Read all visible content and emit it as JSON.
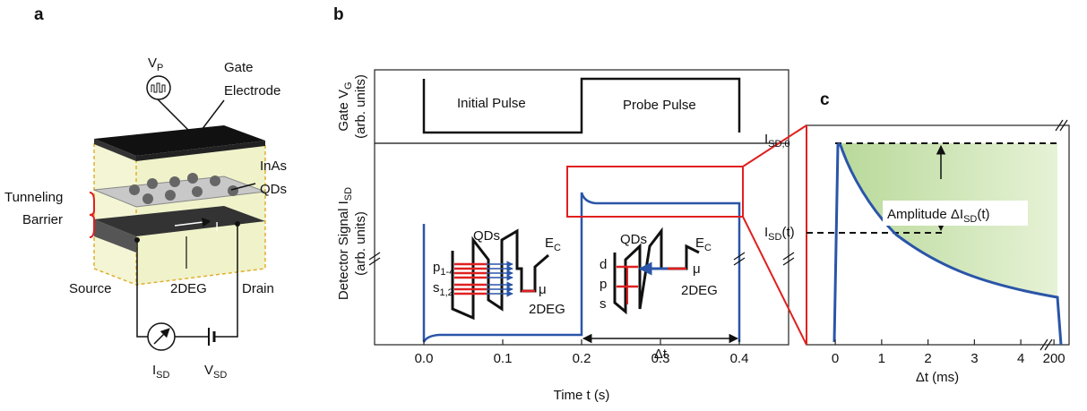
{
  "panels": [
    "a",
    "b",
    "c"
  ],
  "device": {
    "vp": [
      "V",
      "P"
    ],
    "gate": [
      "Gate",
      "Electrode"
    ],
    "qds": [
      "InAs",
      "QDs"
    ],
    "barrier": [
      "Tunneling",
      "Barrier"
    ],
    "current": "I",
    "source": "Source",
    "layer": "2DEG",
    "drain": "Drain",
    "isd": [
      "I",
      "SD"
    ],
    "vsd": [
      "V",
      "SD"
    ]
  },
  "chart_data": [
    {
      "type": "line",
      "gate_ylabel": [
        "Gate V",
        "G",
        "(arb. units)"
      ],
      "detector_ylabel": [
        "Detector Signal I",
        "SD",
        "(arb. units)"
      ],
      "xlabel": "Time t (s)",
      "xlim": [
        -0.0625,
        0.4625
      ],
      "xticks": [
        {
          "value": 0,
          "label": "0.0"
        },
        0.1,
        0.2,
        0.3,
        0.4
      ],
      "annotations": {
        "initial": "Initial Pulse",
        "probe": "Probe Pulse",
        "delta": "Δt"
      },
      "inset_initial": {
        "qds": "QDs",
        "ec": [
          "E",
          "C"
        ],
        "p": [
          "p",
          "1-4"
        ],
        "s": [
          "s",
          "1,2"
        ],
        "mu": "μ",
        "layer": "2DEG"
      },
      "inset_probe": {
        "qds": "QDs",
        "ec": [
          "E",
          "C"
        ],
        "d": "d",
        "p": "p",
        "s": "s",
        "mu": "μ",
        "layer": "2DEG"
      }
    },
    {
      "type": "line",
      "xlabel": "Δt (ms)",
      "x_segments": [
        {
          "xlim": [
            -0.62,
            4.5
          ],
          "xticks": [
            0,
            1,
            2,
            3,
            4
          ]
        },
        {
          "xlim": [
            199.88,
            200.33
          ],
          "xticks": [
            200
          ]
        }
      ],
      "annotations": {
        "initial_current": [
          "I",
          "SD,0"
        ],
        "current": [
          "I",
          "SD",
          "(t)"
        ],
        "amplitude": [
          "Amplitude ΔI",
          "SD",
          "(t)"
        ]
      }
    }
  ]
}
